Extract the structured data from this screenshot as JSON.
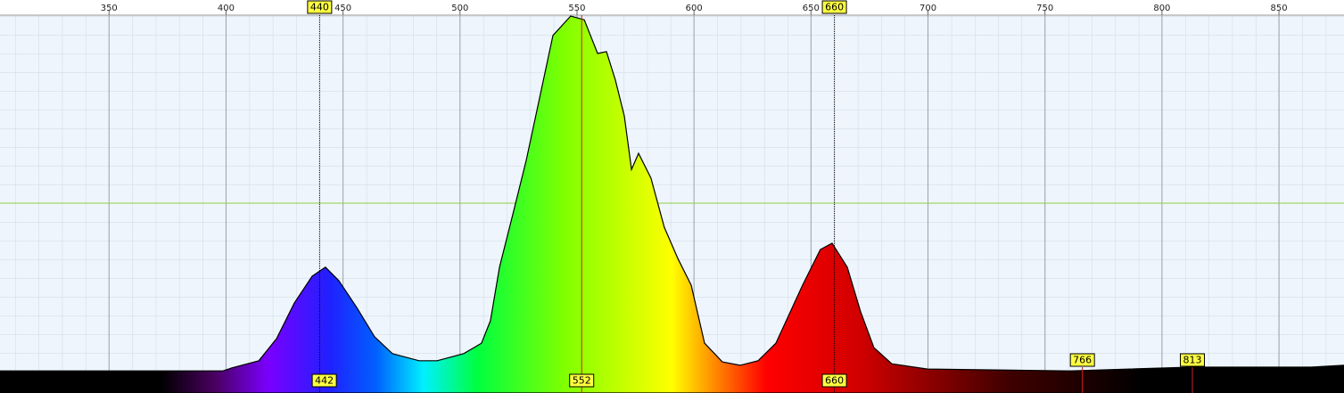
{
  "chart_data": {
    "type": "area",
    "x": [
      303.4,
      398.7,
      402.5,
      414.0,
      421.6,
      429.2,
      436.8,
      442.5,
      448.2,
      455.9,
      463.5,
      471.1,
      482.5,
      490.2,
      501.6,
      509.2,
      513.0,
      516.9,
      522.6,
      528.3,
      534.0,
      539.7,
      547.3,
      553.1,
      558.8,
      562.6,
      566.4,
      570.2,
      573.3,
      576.3,
      581.6,
      587.3,
      593.1,
      598.8,
      604.5,
      612.1,
      619.7,
      627.4,
      635.0,
      646.4,
      654.0,
      659.0,
      665.5,
      671.2,
      676.9,
      684.5,
      699.8,
      760.8,
      812.6,
      863.7,
      877.8
    ],
    "values": [
      5.2,
      5.2,
      6.0,
      7.9,
      13.8,
      23.3,
      30.5,
      32.9,
      29.3,
      22.1,
      14.3,
      9.8,
      7.9,
      7.9,
      9.8,
      12.6,
      18.6,
      32.9,
      47.1,
      61.4,
      78.1,
      94.8,
      100,
      99.0,
      90.0,
      90.5,
      82.9,
      73.3,
      59.0,
      63.3,
      56.7,
      43.6,
      35.2,
      28.1,
      12.6,
      7.6,
      6.7,
      7.9,
      12.6,
      28.1,
      37.6,
      39.3,
      32.9,
      21.0,
      11.4,
      7.1,
      5.7,
      5.2,
      6.2,
      6.2,
      6.7
    ],
    "xlim": [
      303.4,
      877.8
    ],
    "ylim": [
      0,
      100
    ],
    "xticks": [
      300,
      350,
      400,
      450,
      500,
      550,
      600,
      650,
      700,
      750,
      800,
      850
    ],
    "yticks": [
      50
    ],
    "grid": true,
    "cursor_markers": [
      440,
      660
    ],
    "peak_markers": [
      442,
      552,
      660,
      766,
      813
    ]
  }
}
